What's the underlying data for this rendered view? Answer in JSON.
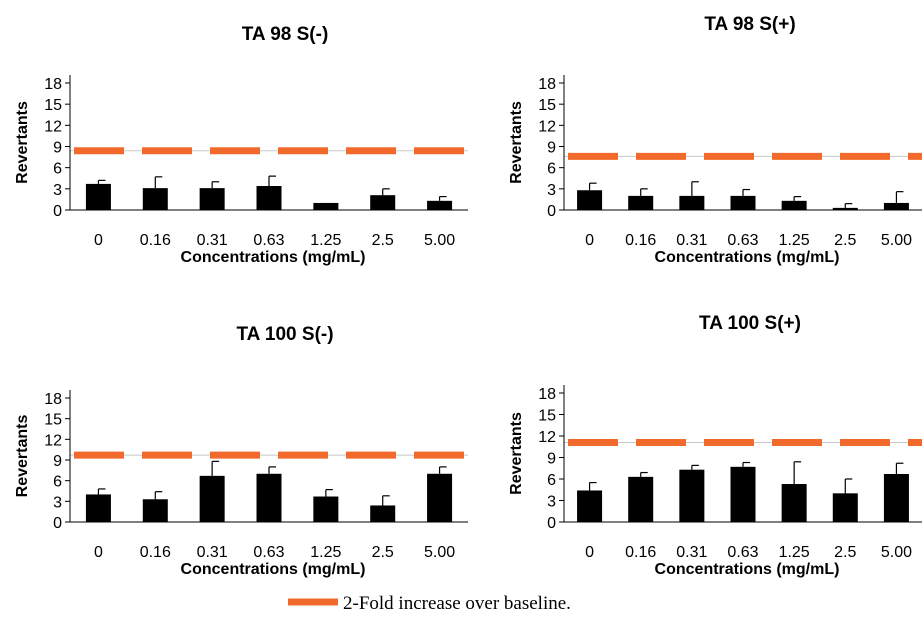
{
  "colors": {
    "bar": "#000000",
    "threshold": "#f26a2b",
    "gridline": "#c8c8c8"
  },
  "legend": {
    "label": "2-Fold increase over baseline.",
    "position": "bottom-center"
  },
  "chart_data": [
    {
      "type": "bar",
      "title": "TA 98 S(-)",
      "xlabel": "Concentrations (mg/mL)",
      "ylabel": "Revertants",
      "categories": [
        "0",
        "0.16",
        "0.31",
        "0.63",
        "1.25",
        "2.5",
        "5.00"
      ],
      "values": [
        3.7,
        3.1,
        3.1,
        3.4,
        1.0,
        2.1,
        1.3
      ],
      "errors": [
        0.5,
        1.6,
        0.9,
        1.4,
        0.0,
        0.9,
        0.6
      ],
      "threshold": 8.4,
      "ylim": [
        0,
        18
      ],
      "yticks": [
        0,
        3,
        6,
        9,
        12,
        15,
        18
      ],
      "grid": false
    },
    {
      "type": "bar",
      "title": "TA 98 S(+)",
      "xlabel": "Concentrations (mg/mL)",
      "ylabel": "Revertants",
      "categories": [
        "0",
        "0.16",
        "0.31",
        "0.63",
        "1.25",
        "2.5",
        "5.00"
      ],
      "values": [
        2.8,
        2.0,
        2.0,
        2.0,
        1.3,
        0.3,
        1.0
      ],
      "errors": [
        1.0,
        1.0,
        2.0,
        0.9,
        0.6,
        0.6,
        1.6
      ],
      "threshold": 7.6,
      "ylim": [
        0,
        18
      ],
      "yticks": [
        0,
        3,
        6,
        9,
        12,
        15,
        18
      ],
      "grid": false
    },
    {
      "type": "bar",
      "title": "TA 100 S(-)",
      "xlabel": "Concentrations (mg/mL)",
      "ylabel": "Revertants",
      "categories": [
        "0",
        "0.16",
        "0.31",
        "0.63",
        "1.25",
        "2.5",
        "5.00"
      ],
      "values": [
        4.0,
        3.3,
        6.7,
        7.0,
        3.7,
        2.4,
        7.0
      ],
      "errors": [
        0.8,
        1.1,
        2.1,
        1.0,
        1.0,
        1.4,
        1.0
      ],
      "threshold": 9.7,
      "ylim": [
        0,
        18
      ],
      "yticks": [
        0,
        3,
        6,
        9,
        12,
        15,
        18
      ],
      "grid": false
    },
    {
      "type": "bar",
      "title": "TA 100 S(+)",
      "xlabel": "Concentrations (mg/mL)",
      "ylabel": "Revertants",
      "categories": [
        "0",
        "0.16",
        "0.31",
        "0.63",
        "1.25",
        "2.5",
        "5.00"
      ],
      "values": [
        4.4,
        6.3,
        7.3,
        7.7,
        5.3,
        4.0,
        6.7
      ],
      "errors": [
        1.1,
        0.6,
        0.6,
        0.6,
        3.1,
        2.0,
        1.5
      ],
      "threshold": 11.1,
      "ylim": [
        0,
        18
      ],
      "yticks": [
        0,
        3,
        6,
        9,
        12,
        15,
        18
      ],
      "grid": false
    }
  ]
}
